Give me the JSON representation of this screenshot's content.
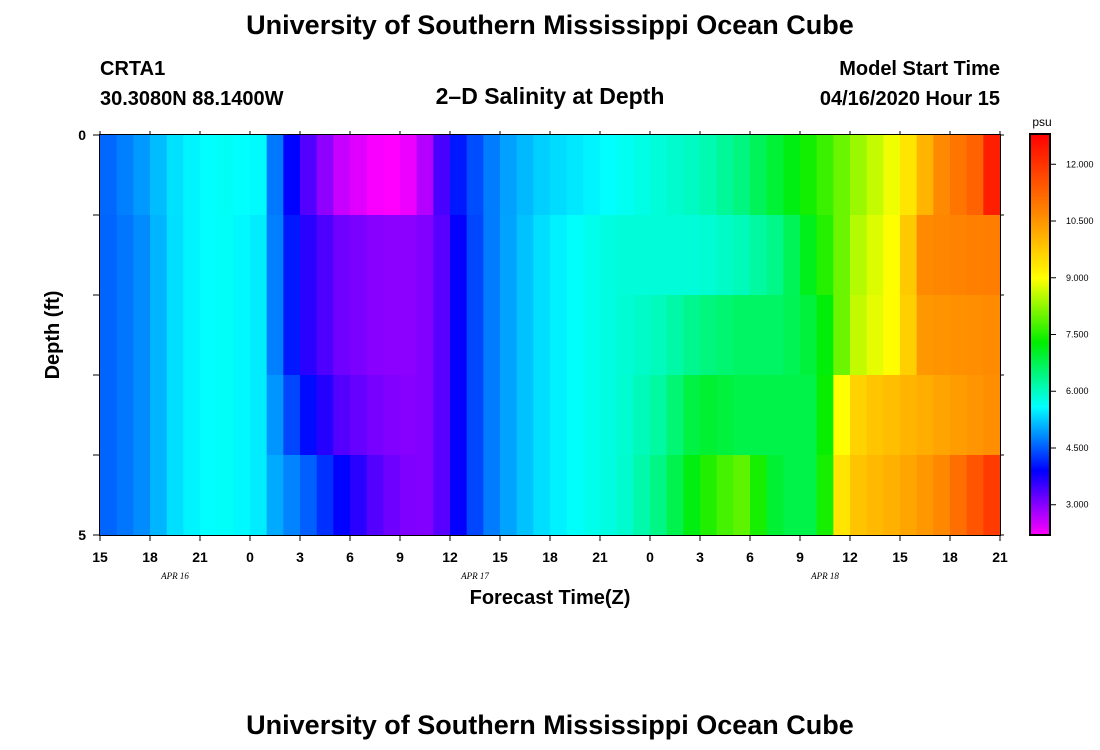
{
  "header": {
    "title": "University of Southern Mississippi Ocean Cube",
    "station": "CRTA1",
    "coords": "30.3080N 88.1400W",
    "product": "2–D Salinity at Depth",
    "start_label": "Model Start Time",
    "start_value": "04/16/2020 Hour 15"
  },
  "footer": {
    "title": "University of Southern Mississippi Ocean Cube"
  },
  "chart_data": {
    "type": "heatmap",
    "title": "2–D Salinity at Depth",
    "xlabel": "Forecast Time(Z)",
    "ylabel": "Depth (ft)",
    "x_tick_labels": [
      "15",
      "18",
      "21",
      "0",
      "3",
      "6",
      "9",
      "12",
      "15",
      "18",
      "21",
      "0",
      "3",
      "6",
      "9",
      "12",
      "15",
      "18",
      "21"
    ],
    "day_labels": [
      {
        "label": "APR 16",
        "after_tick": 1
      },
      {
        "label": "APR 17",
        "after_tick": 7
      },
      {
        "label": "APR 18",
        "after_tick": 14
      }
    ],
    "y_tick_labels": [
      "0",
      "5"
    ],
    "ylim": [
      0,
      5
    ],
    "colorbar": {
      "unit": "psu",
      "min": 2.2,
      "max": 12.8,
      "tick_values": [
        3.0,
        4.5,
        6.0,
        7.5,
        9.0,
        10.5,
        12.0
      ],
      "tick_labels": [
        "3.000",
        "4.500",
        "6.000",
        "7.500",
        "9.000",
        "10.500",
        "12.000"
      ],
      "colors": [
        "#ff00ff",
        "#0000ff",
        "#00ffff",
        "#00ee00",
        "#ffff00",
        "#ff8800",
        "#ff0000"
      ]
    },
    "row_depths_ft": [
      0.25,
      0.75,
      1.25,
      1.75,
      2.25,
      2.75,
      3.25,
      3.75,
      4.25,
      4.75
    ],
    "series_by_depth": [
      {
        "depth": 0.25,
        "points": [
          [
            0,
            4.6
          ],
          [
            2,
            5.0
          ],
          [
            4,
            5.6
          ],
          [
            6,
            5.8
          ],
          [
            8,
            5.7
          ],
          [
            9,
            4.5
          ],
          [
            10,
            3.6
          ],
          [
            12,
            2.6
          ],
          [
            14,
            2.2
          ],
          [
            15,
            2.2
          ],
          [
            16,
            2.5
          ],
          [
            17,
            3.4
          ],
          [
            18,
            4.2
          ],
          [
            19,
            4.6
          ],
          [
            20,
            5.0
          ],
          [
            22,
            5.4
          ],
          [
            24,
            5.6
          ],
          [
            26,
            5.8
          ],
          [
            28,
            6.0
          ],
          [
            30,
            6.2
          ],
          [
            32,
            6.6
          ],
          [
            34,
            7.2
          ],
          [
            36,
            7.8
          ],
          [
            38,
            8.6
          ],
          [
            40,
            9.3
          ],
          [
            42,
            11.0
          ],
          [
            44,
            11.6
          ],
          [
            45,
            13.0
          ]
        ]
      },
      {
        "depth": 0.75,
        "points": [
          [
            0,
            4.6
          ],
          [
            2,
            5.0
          ],
          [
            4,
            5.6
          ],
          [
            6,
            5.8
          ],
          [
            8,
            5.7
          ],
          [
            9,
            4.5
          ],
          [
            10,
            3.6
          ],
          [
            12,
            2.6
          ],
          [
            14,
            2.2
          ],
          [
            15,
            2.2
          ],
          [
            16,
            2.5
          ],
          [
            17,
            3.4
          ],
          [
            18,
            4.2
          ],
          [
            19,
            4.6
          ],
          [
            20,
            5.0
          ],
          [
            22,
            5.4
          ],
          [
            24,
            5.6
          ],
          [
            26,
            5.8
          ],
          [
            28,
            6.0
          ],
          [
            30,
            6.2
          ],
          [
            32,
            6.6
          ],
          [
            34,
            7.2
          ],
          [
            36,
            7.8
          ],
          [
            38,
            8.6
          ],
          [
            40,
            9.3
          ],
          [
            42,
            11.0
          ],
          [
            44,
            11.6
          ],
          [
            45,
            13.0
          ]
        ]
      },
      {
        "depth": 1.25,
        "points": [
          [
            0,
            4.6
          ],
          [
            2,
            4.9
          ],
          [
            4,
            5.6
          ],
          [
            6,
            5.8
          ],
          [
            8,
            5.6
          ],
          [
            9,
            4.6
          ],
          [
            10,
            3.8
          ],
          [
            12,
            3.2
          ],
          [
            14,
            3.0
          ],
          [
            16,
            3.0
          ],
          [
            17,
            3.3
          ],
          [
            18,
            4.0
          ],
          [
            19,
            4.6
          ],
          [
            20,
            5.0
          ],
          [
            22,
            5.5
          ],
          [
            24,
            5.8
          ],
          [
            26,
            6.0
          ],
          [
            28,
            6.0
          ],
          [
            30,
            6.0
          ],
          [
            32,
            6.2
          ],
          [
            34,
            6.6
          ],
          [
            36,
            7.6
          ],
          [
            38,
            8.8
          ],
          [
            40,
            9.4
          ],
          [
            41,
            11.0
          ],
          [
            45,
            11.2
          ]
        ]
      },
      {
        "depth": 1.75,
        "points": [
          [
            0,
            4.6
          ],
          [
            2,
            4.9
          ],
          [
            4,
            5.6
          ],
          [
            6,
            5.8
          ],
          [
            8,
            5.6
          ],
          [
            9,
            4.6
          ],
          [
            10,
            3.8
          ],
          [
            12,
            3.2
          ],
          [
            14,
            3.0
          ],
          [
            16,
            3.0
          ],
          [
            17,
            3.3
          ],
          [
            18,
            4.0
          ],
          [
            19,
            4.6
          ],
          [
            20,
            5.0
          ],
          [
            22,
            5.5
          ],
          [
            24,
            5.8
          ],
          [
            26,
            6.0
          ],
          [
            28,
            6.0
          ],
          [
            30,
            6.0
          ],
          [
            32,
            6.2
          ],
          [
            34,
            6.6
          ],
          [
            36,
            7.6
          ],
          [
            38,
            8.8
          ],
          [
            40,
            9.4
          ],
          [
            41,
            11.0
          ],
          [
            45,
            11.2
          ]
        ]
      },
      {
        "depth": 2.25,
        "points": [
          [
            0,
            4.6
          ],
          [
            2,
            4.9
          ],
          [
            4,
            5.6
          ],
          [
            6,
            5.8
          ],
          [
            8,
            5.6
          ],
          [
            9,
            4.6
          ],
          [
            10,
            3.8
          ],
          [
            12,
            3.2
          ],
          [
            14,
            3.0
          ],
          [
            16,
            3.0
          ],
          [
            17,
            3.3
          ],
          [
            18,
            4.0
          ],
          [
            19,
            4.6
          ],
          [
            20,
            5.0
          ],
          [
            22,
            5.5
          ],
          [
            24,
            5.8
          ],
          [
            26,
            6.0
          ],
          [
            28,
            6.2
          ],
          [
            30,
            6.6
          ],
          [
            32,
            6.8
          ],
          [
            34,
            6.8
          ],
          [
            36,
            7.2
          ],
          [
            37,
            8.2
          ],
          [
            38,
            8.9
          ],
          [
            40,
            9.4
          ],
          [
            41,
            10.8
          ],
          [
            45,
            11.0
          ]
        ]
      },
      {
        "depth": 2.75,
        "points": [
          [
            0,
            4.6
          ],
          [
            2,
            4.9
          ],
          [
            4,
            5.6
          ],
          [
            6,
            5.8
          ],
          [
            8,
            5.6
          ],
          [
            9,
            4.6
          ],
          [
            10,
            3.8
          ],
          [
            12,
            3.2
          ],
          [
            14,
            3.0
          ],
          [
            16,
            3.0
          ],
          [
            17,
            3.3
          ],
          [
            18,
            4.0
          ],
          [
            19,
            4.6
          ],
          [
            20,
            5.0
          ],
          [
            22,
            5.5
          ],
          [
            24,
            5.8
          ],
          [
            26,
            6.0
          ],
          [
            28,
            6.2
          ],
          [
            30,
            6.6
          ],
          [
            32,
            6.8
          ],
          [
            34,
            6.8
          ],
          [
            36,
            7.2
          ],
          [
            37,
            8.2
          ],
          [
            38,
            8.9
          ],
          [
            40,
            9.4
          ],
          [
            41,
            10.8
          ],
          [
            45,
            11.0
          ]
        ]
      },
      {
        "depth": 3.25,
        "points": [
          [
            0,
            4.6
          ],
          [
            2,
            4.9
          ],
          [
            4,
            5.6
          ],
          [
            6,
            5.8
          ],
          [
            8,
            5.6
          ],
          [
            9,
            4.8
          ],
          [
            10,
            4.2
          ],
          [
            12,
            3.4
          ],
          [
            14,
            3.1
          ],
          [
            16,
            3.0
          ],
          [
            17,
            3.3
          ],
          [
            18,
            4.0
          ],
          [
            19,
            4.6
          ],
          [
            20,
            5.0
          ],
          [
            22,
            5.5
          ],
          [
            24,
            5.8
          ],
          [
            26,
            6.0
          ],
          [
            28,
            6.4
          ],
          [
            30,
            7.2
          ],
          [
            32,
            7.0
          ],
          [
            34,
            7.0
          ],
          [
            36,
            7.0
          ],
          [
            37,
            9.2
          ],
          [
            38,
            10.0
          ],
          [
            40,
            10.3
          ],
          [
            42,
            10.6
          ],
          [
            45,
            11.0
          ]
        ]
      },
      {
        "depth": 3.75,
        "points": [
          [
            0,
            4.6
          ],
          [
            2,
            4.9
          ],
          [
            4,
            5.6
          ],
          [
            6,
            5.8
          ],
          [
            8,
            5.6
          ],
          [
            9,
            4.8
          ],
          [
            10,
            4.2
          ],
          [
            12,
            3.4
          ],
          [
            14,
            3.1
          ],
          [
            16,
            3.0
          ],
          [
            17,
            3.3
          ],
          [
            18,
            4.0
          ],
          [
            19,
            4.6
          ],
          [
            20,
            5.0
          ],
          [
            22,
            5.5
          ],
          [
            24,
            5.8
          ],
          [
            26,
            6.0
          ],
          [
            28,
            6.4
          ],
          [
            30,
            7.2
          ],
          [
            32,
            7.0
          ],
          [
            34,
            7.0
          ],
          [
            36,
            7.0
          ],
          [
            37,
            9.2
          ],
          [
            38,
            10.0
          ],
          [
            40,
            10.3
          ],
          [
            42,
            10.6
          ],
          [
            45,
            11.0
          ]
        ]
      },
      {
        "depth": 4.25,
        "points": [
          [
            0,
            4.6
          ],
          [
            2,
            4.9
          ],
          [
            4,
            5.6
          ],
          [
            6,
            5.8
          ],
          [
            8,
            5.6
          ],
          [
            9,
            5.0
          ],
          [
            10,
            4.8
          ],
          [
            12,
            4.0
          ],
          [
            14,
            3.3
          ],
          [
            16,
            3.0
          ],
          [
            17,
            3.3
          ],
          [
            18,
            4.0
          ],
          [
            19,
            4.6
          ],
          [
            20,
            5.0
          ],
          [
            22,
            5.5
          ],
          [
            24,
            5.8
          ],
          [
            26,
            6.0
          ],
          [
            28,
            6.6
          ],
          [
            30,
            7.6
          ],
          [
            32,
            8.2
          ],
          [
            34,
            7.0
          ],
          [
            36,
            7.0
          ],
          [
            37,
            9.6
          ],
          [
            38,
            10.2
          ],
          [
            40,
            10.5
          ],
          [
            42,
            11.0
          ],
          [
            44,
            11.8
          ],
          [
            45,
            12.2
          ]
        ]
      },
      {
        "depth": 4.75,
        "points": [
          [
            0,
            4.6
          ],
          [
            2,
            4.9
          ],
          [
            4,
            5.6
          ],
          [
            6,
            5.8
          ],
          [
            8,
            5.6
          ],
          [
            9,
            5.0
          ],
          [
            10,
            4.8
          ],
          [
            12,
            4.0
          ],
          [
            14,
            3.3
          ],
          [
            16,
            3.0
          ],
          [
            17,
            3.3
          ],
          [
            18,
            4.0
          ],
          [
            19,
            4.6
          ],
          [
            20,
            5.0
          ],
          [
            22,
            5.5
          ],
          [
            24,
            5.8
          ],
          [
            26,
            6.0
          ],
          [
            28,
            6.6
          ],
          [
            30,
            7.6
          ],
          [
            32,
            8.2
          ],
          [
            34,
            7.0
          ],
          [
            36,
            7.0
          ],
          [
            37,
            9.6
          ],
          [
            38,
            10.2
          ],
          [
            40,
            10.5
          ],
          [
            42,
            11.0
          ],
          [
            44,
            11.8
          ],
          [
            45,
            12.2
          ]
        ]
      }
    ]
  }
}
